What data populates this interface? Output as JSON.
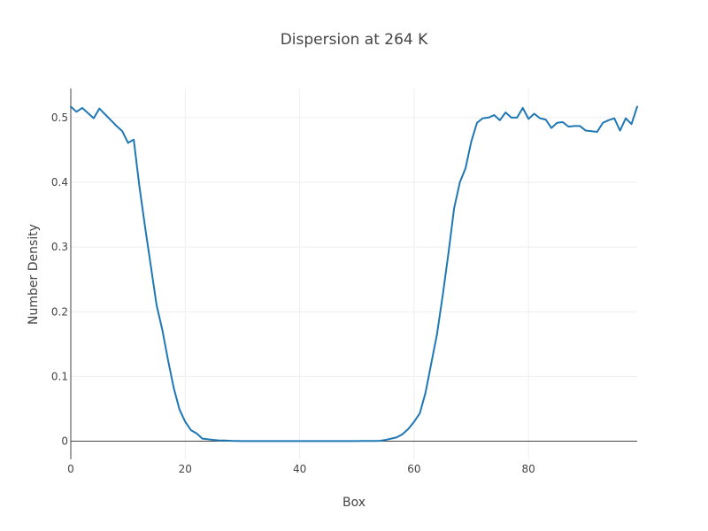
{
  "chart_data": {
    "type": "line",
    "title": "Dispersion at 264 K",
    "xlabel": "Box",
    "ylabel": "Number Density",
    "xlim": [
      0,
      99
    ],
    "ylim": [
      -0.028,
      0.545
    ],
    "x_ticks": [
      0,
      20,
      40,
      60,
      80
    ],
    "x_tick_labels": [
      "0",
      "20",
      "40",
      "60",
      "80"
    ],
    "y_ticks": [
      0,
      0.1,
      0.2,
      0.3,
      0.4,
      0.5
    ],
    "y_tick_labels": [
      "0",
      "0.1",
      "0.2",
      "0.3",
      "0.4",
      "0.5"
    ],
    "grid": true,
    "series": [
      {
        "color": "#1f77b4",
        "x": [
          0,
          1,
          2,
          3,
          4,
          5,
          6,
          7,
          8,
          9,
          10,
          11,
          12,
          13,
          14,
          15,
          16,
          17,
          18,
          19,
          20,
          21,
          22,
          23,
          24,
          25,
          26,
          27,
          28,
          29,
          30,
          31,
          32,
          33,
          34,
          35,
          36,
          37,
          38,
          39,
          40,
          41,
          42,
          43,
          44,
          45,
          46,
          47,
          48,
          49,
          50,
          51,
          52,
          53,
          54,
          55,
          56,
          57,
          58,
          59,
          60,
          61,
          62,
          63,
          64,
          65,
          66,
          67,
          68,
          69,
          70,
          71,
          72,
          73,
          74,
          75,
          76,
          77,
          78,
          79,
          80,
          81,
          82,
          83,
          84,
          85,
          86,
          87,
          88,
          89,
          90,
          91,
          92,
          93,
          94,
          95,
          96,
          97,
          98,
          99
        ],
        "y": [
          0.517,
          0.509,
          0.515,
          0.507,
          0.499,
          0.514,
          0.505,
          0.496,
          0.487,
          0.479,
          0.461,
          0.466,
          0.393,
          0.33,
          0.27,
          0.21,
          0.172,
          0.125,
          0.082,
          0.049,
          0.03,
          0.017,
          0.012,
          0.004,
          0.003,
          0.002,
          0.001,
          0.001,
          0.0005,
          0.0003,
          0.0002,
          0.0002,
          0.0002,
          0.0002,
          0.0002,
          0.0002,
          0.0002,
          0.0002,
          0.0002,
          0.0002,
          0.0002,
          0.0002,
          0.0002,
          0.0002,
          0.0002,
          0.0002,
          0.0002,
          0.0002,
          0.0002,
          0.0002,
          0.0002,
          0.0003,
          0.0003,
          0.0003,
          0.0005,
          0.002,
          0.004,
          0.006,
          0.011,
          0.019,
          0.03,
          0.043,
          0.075,
          0.12,
          0.165,
          0.225,
          0.29,
          0.36,
          0.4,
          0.422,
          0.463,
          0.492,
          0.499,
          0.5,
          0.504,
          0.496,
          0.508,
          0.5,
          0.5,
          0.515,
          0.498,
          0.506,
          0.499,
          0.497,
          0.484,
          0.492,
          0.493,
          0.486,
          0.487,
          0.487,
          0.48,
          0.479,
          0.478,
          0.492,
          0.496,
          0.499,
          0.48,
          0.499,
          0.49,
          0.517
        ]
      }
    ]
  }
}
